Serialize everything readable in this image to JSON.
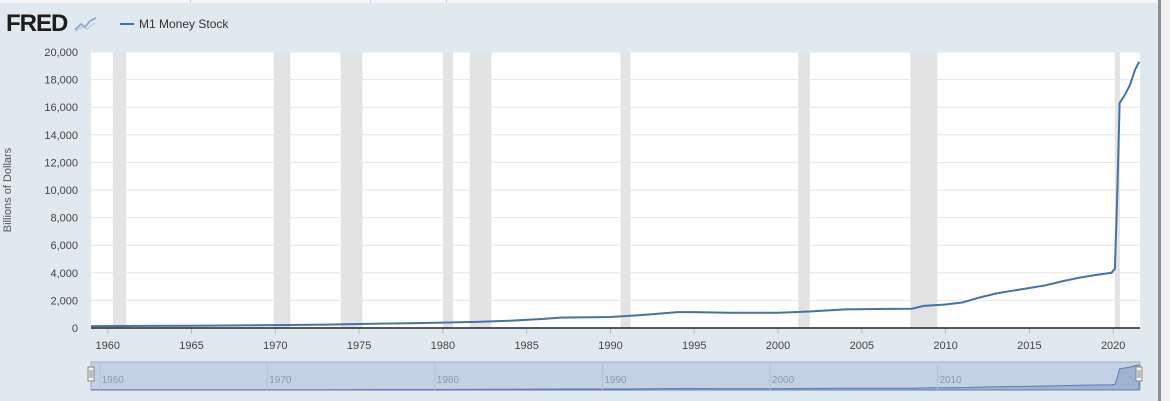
{
  "logo": {
    "text": "FRED"
  },
  "chart_data": {
    "type": "line",
    "title": "",
    "ylabel": "Billions of Dollars",
    "xlim": [
      1959.0,
      2021.6
    ],
    "ylim": [
      0,
      20000
    ],
    "yticks": [
      0,
      2000,
      4000,
      6000,
      8000,
      10000,
      12000,
      14000,
      16000,
      18000,
      20000
    ],
    "ytick_labels": [
      "0",
      "2,000",
      "4,000",
      "6,000",
      "8,000",
      "10,000",
      "12,000",
      "14,000",
      "16,000",
      "18,000",
      "20,000"
    ],
    "xticks": [
      1960,
      1965,
      1970,
      1975,
      1980,
      1985,
      1990,
      1995,
      2000,
      2005,
      2010,
      2015,
      2020
    ],
    "navigator_ticks": [
      1960,
      1970,
      1980,
      1990,
      2000,
      2010
    ],
    "grid": true,
    "legend_position": "top-left",
    "series": [
      {
        "name": "M1 Money Stock",
        "color": "#4572a7",
        "x": [
          1959.0,
          1962,
          1965,
          1968,
          1970,
          1973,
          1975,
          1978,
          1980,
          1982,
          1984,
          1986,
          1987,
          1990,
          1992,
          1994,
          1995,
          1997,
          2000,
          2001,
          2002,
          2004,
          2006,
          2008,
          2008.7,
          2010,
          2011,
          2012,
          2013,
          2014,
          2015,
          2016,
          2017,
          2018,
          2019,
          2019.9,
          2020.1,
          2020.25,
          2020.38,
          2020.7,
          2021.0,
          2021.3,
          2021.55
        ],
        "y": [
          140,
          150,
          170,
          190,
          210,
          250,
          290,
          350,
          390,
          440,
          530,
          660,
          750,
          800,
          950,
          1150,
          1150,
          1100,
          1100,
          1150,
          1200,
          1350,
          1380,
          1400,
          1600,
          1700,
          1850,
          2200,
          2500,
          2700,
          2900,
          3100,
          3400,
          3650,
          3850,
          4000,
          4300,
          10000,
          16300,
          16900,
          17600,
          18700,
          19300
        ]
      }
    ],
    "recessions": [
      [
        1960.3,
        1961.1
      ],
      [
        1969.9,
        1970.9
      ],
      [
        1973.9,
        1975.2
      ],
      [
        1980.0,
        1980.6
      ],
      [
        1981.6,
        1982.9
      ],
      [
        1990.6,
        1991.2
      ],
      [
        2001.2,
        2001.9
      ],
      [
        2007.9,
        2009.5
      ],
      [
        2020.1,
        2020.4
      ]
    ]
  }
}
